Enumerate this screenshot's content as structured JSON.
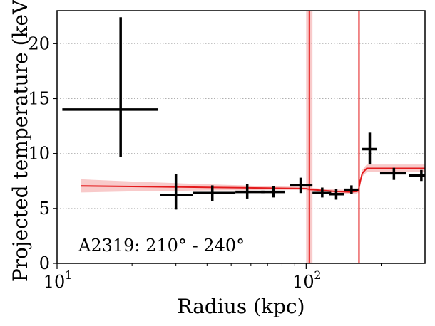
{
  "chart_data": {
    "type": "scatter",
    "xscale": "log",
    "xlim": [
      10,
      300
    ],
    "ylim": [
      0,
      23
    ],
    "xlabel": "Radius (kpc)",
    "ylabel": "Projected temperature (keV)",
    "xticks": [
      {
        "value": 10,
        "label": "10",
        "exp": "1"
      },
      {
        "value": 100,
        "label": "10",
        "exp": "2"
      }
    ],
    "yticks": [
      0,
      5,
      10,
      15,
      20
    ],
    "grid": "horizontal dotted",
    "annotation": "A2319: 210° - 240°",
    "colors": {
      "data": "#000000",
      "model": "#e41a1c",
      "band": "#f4a6a6",
      "grid": "#b0b0b0"
    },
    "series": [
      {
        "kind": "errorbar",
        "points": [
          {
            "x": 18,
            "xlo": 10.5,
            "xhi": 25.5,
            "y": 14.0,
            "ylo": 9.7,
            "yhi": 22.4
          },
          {
            "x": 30,
            "xlo": 26.0,
            "xhi": 35.0,
            "y": 6.2,
            "ylo": 4.9,
            "yhi": 8.1
          },
          {
            "x": 42,
            "xlo": 35.0,
            "xhi": 52.0,
            "y": 6.4,
            "ylo": 5.7,
            "yhi": 7.1
          },
          {
            "x": 58,
            "xlo": 52.0,
            "xhi": 68.0,
            "y": 6.5,
            "ylo": 5.9,
            "yhi": 7.2
          },
          {
            "x": 74,
            "xlo": 66.0,
            "xhi": 82.0,
            "y": 6.5,
            "ylo": 6.0,
            "yhi": 7.0
          },
          {
            "x": 95,
            "xlo": 86.0,
            "xhi": 106.0,
            "y": 7.1,
            "ylo": 6.4,
            "yhi": 7.8
          },
          {
            "x": 116,
            "xlo": 106.0,
            "xhi": 126.0,
            "y": 6.4,
            "ylo": 6.0,
            "yhi": 6.9
          },
          {
            "x": 132,
            "xlo": 124.0,
            "xhi": 142.0,
            "y": 6.3,
            "ylo": 5.8,
            "yhi": 6.8
          },
          {
            "x": 152,
            "xlo": 142.0,
            "xhi": 162.0,
            "y": 6.7,
            "ylo": 6.3,
            "yhi": 7.1
          },
          {
            "x": 180,
            "xlo": 168.0,
            "xhi": 192.0,
            "y": 10.4,
            "ylo": 9.0,
            "yhi": 11.9
          },
          {
            "x": 225,
            "xlo": 198.0,
            "xhi": 252.0,
            "y": 8.2,
            "ylo": 7.6,
            "yhi": 8.7
          },
          {
            "x": 290,
            "xlo": 258.0,
            "xhi": 320.0,
            "y": 8.0,
            "ylo": 7.5,
            "yhi": 8.5
          }
        ]
      },
      {
        "kind": "model",
        "x": [
          12.5,
          20,
          30,
          40,
          55,
          70,
          90,
          100,
          104,
          115,
          130,
          150,
          160,
          162,
          163,
          165,
          168,
          175,
          200,
          250,
          300
        ],
        "y": [
          7.05,
          7.0,
          6.95,
          6.92,
          6.88,
          6.85,
          6.82,
          6.8,
          6.72,
          6.65,
          6.55,
          6.5,
          6.55,
          6.65,
          6.9,
          7.5,
          8.2,
          8.65,
          8.65,
          8.65,
          8.65
        ],
        "band_hi": [
          7.65,
          7.45,
          7.3,
          7.2,
          7.1,
          7.02,
          6.97,
          6.95,
          6.88,
          6.8,
          6.72,
          6.68,
          6.75,
          6.85,
          7.1,
          7.7,
          8.5,
          9.0,
          9.0,
          9.0,
          9.0
        ],
        "band_lo": [
          6.45,
          6.55,
          6.6,
          6.64,
          6.66,
          6.68,
          6.68,
          6.67,
          6.56,
          6.5,
          6.38,
          6.32,
          6.35,
          6.45,
          6.7,
          7.3,
          7.9,
          8.3,
          8.3,
          8.3,
          8.3
        ]
      }
    ],
    "vlines": [
      {
        "x": 103,
        "band": [
          100,
          106
        ]
      },
      {
        "x": 163
      }
    ]
  }
}
